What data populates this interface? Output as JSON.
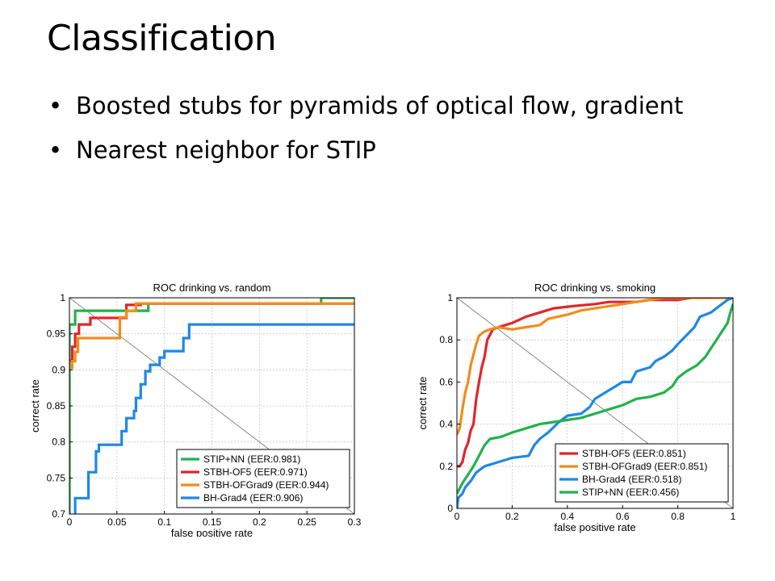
{
  "slide": {
    "title": "Classification",
    "bullets": [
      "Boosted stubs for pyramids of optical flow, gradient",
      "Nearest neighbor for STIP"
    ]
  },
  "chart_data": [
    {
      "type": "line",
      "title": "ROC drinking vs. random",
      "xlabel": "false positive rate",
      "ylabel": "correct rate",
      "xlim": [
        0,
        0.3
      ],
      "ylim": [
        0.7,
        1.0
      ],
      "xticks": [
        0,
        0.05,
        0.1,
        0.15,
        0.2,
        0.25,
        0.3
      ],
      "xtick_labels": [
        "0",
        "0.05",
        "0.1",
        "0.15",
        "0.2",
        "0.25",
        "0.3"
      ],
      "yticks": [
        0.7,
        0.75,
        0.8,
        0.85,
        0.9,
        0.95,
        1.0
      ],
      "ytick_labels": [
        "0.7",
        "0.75",
        "0.8",
        "0.85",
        "0.9",
        "0.95",
        "1"
      ],
      "grid": true,
      "legend_position": "bottom-right",
      "diagonal": [
        [
          0,
          1.0
        ],
        [
          0.3,
          0.7
        ]
      ],
      "series": [
        {
          "name": "STIP+NN (EER:0.981)",
          "color": "#22b24c",
          "points": [
            [
              0,
              0.7
            ],
            [
              0,
              0.963
            ],
            [
              0.006,
              0.963
            ],
            [
              0.006,
              0.982
            ],
            [
              0.083,
              0.982
            ],
            [
              0.083,
              0.992
            ],
            [
              0.265,
              0.992
            ],
            [
              0.265,
              1.0
            ],
            [
              0.3,
              1.0
            ]
          ]
        },
        {
          "name": "STBH-OF5 (EER:0.971)",
          "color": "#e0262b",
          "points": [
            [
              0,
              0.913
            ],
            [
              0.003,
              0.913
            ],
            [
              0.003,
              0.932
            ],
            [
              0.006,
              0.932
            ],
            [
              0.006,
              0.95
            ],
            [
              0.01,
              0.95
            ],
            [
              0.01,
              0.963
            ],
            [
              0.022,
              0.963
            ],
            [
              0.022,
              0.972
            ],
            [
              0.06,
              0.972
            ],
            [
              0.06,
              0.99
            ],
            [
              0.075,
              0.99
            ],
            [
              0.075,
              0.992
            ],
            [
              0.3,
              0.992
            ]
          ]
        },
        {
          "name": "STBH-OFGrad9 (EER:0.944)",
          "color": "#f08c1e",
          "points": [
            [
              0,
              0.903
            ],
            [
              0.003,
              0.903
            ],
            [
              0.003,
              0.912
            ],
            [
              0.006,
              0.912
            ],
            [
              0.006,
              0.925
            ],
            [
              0.009,
              0.925
            ],
            [
              0.009,
              0.944
            ],
            [
              0.053,
              0.944
            ],
            [
              0.053,
              0.973
            ],
            [
              0.06,
              0.973
            ],
            [
              0.06,
              0.982
            ],
            [
              0.07,
              0.982
            ],
            [
              0.07,
              0.992
            ],
            [
              0.3,
              0.992
            ]
          ]
        },
        {
          "name": "BH-Grad4 (EER:0.906)",
          "color": "#1e88e5",
          "points": [
            [
              0.006,
              0.7
            ],
            [
              0.006,
              0.722
            ],
            [
              0.02,
              0.722
            ],
            [
              0.02,
              0.758
            ],
            [
              0.028,
              0.758
            ],
            [
              0.028,
              0.787
            ],
            [
              0.031,
              0.787
            ],
            [
              0.031,
              0.796
            ],
            [
              0.055,
              0.796
            ],
            [
              0.055,
              0.815
            ],
            [
              0.06,
              0.815
            ],
            [
              0.06,
              0.833
            ],
            [
              0.068,
              0.833
            ],
            [
              0.068,
              0.843
            ],
            [
              0.07,
              0.843
            ],
            [
              0.07,
              0.861
            ],
            [
              0.075,
              0.861
            ],
            [
              0.075,
              0.88
            ],
            [
              0.08,
              0.88
            ],
            [
              0.08,
              0.898
            ],
            [
              0.085,
              0.898
            ],
            [
              0.085,
              0.907
            ],
            [
              0.095,
              0.907
            ],
            [
              0.095,
              0.917
            ],
            [
              0.1,
              0.917
            ],
            [
              0.1,
              0.926
            ],
            [
              0.12,
              0.926
            ],
            [
              0.12,
              0.944
            ],
            [
              0.126,
              0.944
            ],
            [
              0.126,
              0.963
            ],
            [
              0.3,
              0.963
            ]
          ]
        }
      ]
    },
    {
      "type": "line",
      "title": "ROC drinking vs. smoking",
      "xlabel": "false positive rate",
      "ylabel": "correct rate",
      "xlim": [
        0,
        1
      ],
      "ylim": [
        0,
        1
      ],
      "xticks": [
        0,
        0.2,
        0.4,
        0.6,
        0.8,
        1.0
      ],
      "xtick_labels": [
        "0",
        "0.2",
        "0.4",
        "0.6",
        "0.8",
        "1"
      ],
      "yticks": [
        0,
        0.2,
        0.4,
        0.6,
        0.8,
        1.0
      ],
      "ytick_labels": [
        "0",
        "0.2",
        "0.4",
        "0.6",
        "0.8",
        "1"
      ],
      "grid": true,
      "legend_position": "bottom-right",
      "diagonal": [
        [
          0,
          1
        ],
        [
          1,
          0
        ]
      ],
      "series": [
        {
          "name": "STBH-OF5 (EER:0.851)",
          "color": "#e0262b",
          "points": [
            [
              0,
              0.2
            ],
            [
              0.01,
              0.2
            ],
            [
              0.02,
              0.22
            ],
            [
              0.03,
              0.28
            ],
            [
              0.04,
              0.31
            ],
            [
              0.05,
              0.37
            ],
            [
              0.06,
              0.4
            ],
            [
              0.07,
              0.52
            ],
            [
              0.08,
              0.6
            ],
            [
              0.09,
              0.67
            ],
            [
              0.1,
              0.72
            ],
            [
              0.11,
              0.8
            ],
            [
              0.13,
              0.85
            ],
            [
              0.15,
              0.86
            ],
            [
              0.2,
              0.88
            ],
            [
              0.25,
              0.91
            ],
            [
              0.3,
              0.93
            ],
            [
              0.35,
              0.95
            ],
            [
              0.42,
              0.96
            ],
            [
              0.5,
              0.97
            ],
            [
              0.55,
              0.98
            ],
            [
              0.65,
              0.98
            ],
            [
              0.7,
              0.99
            ],
            [
              0.8,
              0.99
            ],
            [
              0.85,
              1.0
            ],
            [
              1.0,
              1.0
            ]
          ]
        },
        {
          "name": "STBH-OFGrad9 (EER:0.851)",
          "color": "#f08c1e",
          "points": [
            [
              0,
              0.35
            ],
            [
              0.01,
              0.38
            ],
            [
              0.02,
              0.47
            ],
            [
              0.03,
              0.55
            ],
            [
              0.04,
              0.6
            ],
            [
              0.05,
              0.68
            ],
            [
              0.06,
              0.73
            ],
            [
              0.07,
              0.78
            ],
            [
              0.08,
              0.82
            ],
            [
              0.1,
              0.84
            ],
            [
              0.12,
              0.85
            ],
            [
              0.15,
              0.86
            ],
            [
              0.2,
              0.85
            ],
            [
              0.25,
              0.86
            ],
            [
              0.3,
              0.87
            ],
            [
              0.33,
              0.9
            ],
            [
              0.4,
              0.92
            ],
            [
              0.45,
              0.94
            ],
            [
              0.5,
              0.95
            ],
            [
              0.55,
              0.96
            ],
            [
              0.6,
              0.97
            ],
            [
              0.65,
              0.98
            ],
            [
              0.7,
              0.99
            ],
            [
              0.75,
              1.0
            ],
            [
              1.0,
              1.0
            ]
          ]
        },
        {
          "name": "BH-Grad4 (EER:0.518)",
          "color": "#1e88e5",
          "points": [
            [
              0,
              0
            ],
            [
              0.005,
              0.05
            ],
            [
              0.02,
              0.07
            ],
            [
              0.03,
              0.1
            ],
            [
              0.05,
              0.13
            ],
            [
              0.07,
              0.17
            ],
            [
              0.1,
              0.2
            ],
            [
              0.15,
              0.22
            ],
            [
              0.2,
              0.24
            ],
            [
              0.26,
              0.25
            ],
            [
              0.28,
              0.3
            ],
            [
              0.3,
              0.33
            ],
            [
              0.33,
              0.36
            ],
            [
              0.37,
              0.41
            ],
            [
              0.4,
              0.44
            ],
            [
              0.45,
              0.45
            ],
            [
              0.48,
              0.48
            ],
            [
              0.5,
              0.52
            ],
            [
              0.55,
              0.56
            ],
            [
              0.6,
              0.6
            ],
            [
              0.63,
              0.6
            ],
            [
              0.65,
              0.65
            ],
            [
              0.7,
              0.67
            ],
            [
              0.72,
              0.7
            ],
            [
              0.75,
              0.72
            ],
            [
              0.78,
              0.75
            ],
            [
              0.8,
              0.78
            ],
            [
              0.83,
              0.82
            ],
            [
              0.86,
              0.86
            ],
            [
              0.88,
              0.91
            ],
            [
              0.92,
              0.93
            ],
            [
              0.95,
              0.96
            ],
            [
              0.98,
              0.99
            ],
            [
              1.0,
              1.0
            ]
          ]
        },
        {
          "name": "STIP+NN (EER:0.456)",
          "color": "#22b24c",
          "points": [
            [
              0,
              0.07
            ],
            [
              0.02,
              0.12
            ],
            [
              0.04,
              0.16
            ],
            [
              0.06,
              0.2
            ],
            [
              0.08,
              0.25
            ],
            [
              0.1,
              0.3
            ],
            [
              0.12,
              0.33
            ],
            [
              0.16,
              0.34
            ],
            [
              0.2,
              0.36
            ],
            [
              0.25,
              0.38
            ],
            [
              0.3,
              0.4
            ],
            [
              0.35,
              0.41
            ],
            [
              0.4,
              0.42
            ],
            [
              0.45,
              0.43
            ],
            [
              0.5,
              0.45
            ],
            [
              0.55,
              0.47
            ],
            [
              0.6,
              0.49
            ],
            [
              0.65,
              0.52
            ],
            [
              0.7,
              0.53
            ],
            [
              0.75,
              0.55
            ],
            [
              0.78,
              0.58
            ],
            [
              0.8,
              0.62
            ],
            [
              0.83,
              0.65
            ],
            [
              0.87,
              0.68
            ],
            [
              0.9,
              0.72
            ],
            [
              0.92,
              0.76
            ],
            [
              0.94,
              0.8
            ],
            [
              0.96,
              0.84
            ],
            [
              0.98,
              0.88
            ],
            [
              0.99,
              0.93
            ],
            [
              1.0,
              0.97
            ]
          ]
        }
      ]
    }
  ]
}
